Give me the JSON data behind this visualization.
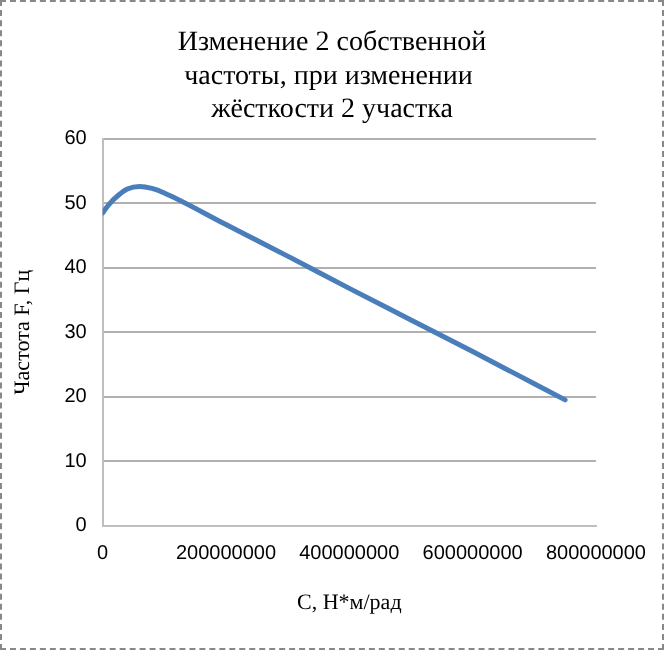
{
  "chart_data": {
    "type": "line",
    "title": "Изменение 2 собственной частоты, при изменении  жёсткости 2 участка",
    "xlabel": "С, Н*м/рад",
    "ylabel": "Частота F, Гц",
    "x": [
      0,
      10000000,
      25000000,
      40000000,
      60000000,
      80000000,
      100000000,
      200000000,
      300000000,
      400000000,
      500000000,
      600000000,
      700000000,
      750000000
    ],
    "series": [
      {
        "color": "#4a7ebb",
        "values": [
          48.5,
          49.8,
          51.2,
          52.2,
          52.6,
          52.3,
          51.6,
          46.7,
          41.8,
          36.8,
          31.9,
          27.0,
          22.0,
          19.5
        ]
      }
    ],
    "xlim": [
      0,
      800000000
    ],
    "xticks": [
      0,
      200000000,
      400000000,
      600000000,
      800000000
    ],
    "ylim": [
      0,
      60
    ],
    "yticks": [
      0,
      10,
      20,
      30,
      40,
      50,
      60
    ],
    "grid": "y",
    "legend": false,
    "marker": "none",
    "line_style": "solid"
  }
}
